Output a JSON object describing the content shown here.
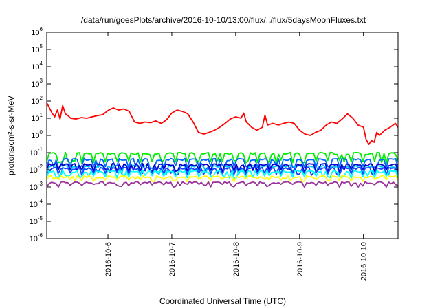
{
  "chart_data": {
    "type": "line",
    "title": "/data/run/goesPlots/archive/2016-10-10/13:00/flux/../flux/5daysMoonFluxes.txt",
    "xlabel": "Coordinated Universal Time (UTC)",
    "ylabel": "protons/cm²-s-sr-MeV",
    "yscale": "log",
    "ylim": [
      1e-06,
      1000000.0
    ],
    "xlim": [
      "2016-10-05T01:00",
      "2016-10-10T13:00"
    ],
    "x_ticks": [
      "2016-10-6",
      "2016-10-7",
      "2016-10-8",
      "2016-10-9",
      "2016-10-10"
    ],
    "y_ticks": [
      {
        "base": "10",
        "exp": "-6"
      },
      {
        "base": "10",
        "exp": "-5"
      },
      {
        "base": "10",
        "exp": "-4"
      },
      {
        "base": "10",
        "exp": "-3"
      },
      {
        "base": "10",
        "exp": "-2"
      },
      {
        "base": "10",
        "exp": "-1"
      },
      {
        "base": "10",
        "exp": "0"
      },
      {
        "base": "10",
        "exp": "1"
      },
      {
        "base": "10",
        "exp": "2"
      },
      {
        "base": "10",
        "exp": "3"
      },
      {
        "base": "10",
        "exp": "4"
      },
      {
        "base": "10",
        "exp": "5"
      },
      {
        "base": "10",
        "exp": "6"
      }
    ],
    "grid": false,
    "legend": "none",
    "series": [
      {
        "color": "#ff0000",
        "points": [
          [
            "2016-10-05T01:00",
            80
          ],
          [
            "2016-10-05T02:00",
            40
          ],
          [
            "2016-10-05T03:00",
            20
          ],
          [
            "2016-10-05T04:00",
            12
          ],
          [
            "2016-10-05T05:00",
            30
          ],
          [
            "2016-10-05T06:00",
            9
          ],
          [
            "2016-10-05T07:00",
            55
          ],
          [
            "2016-10-05T08:00",
            18
          ],
          [
            "2016-10-05T09:00",
            14
          ],
          [
            "2016-10-05T10:00",
            10
          ],
          [
            "2016-10-05T12:00",
            9
          ],
          [
            "2016-10-05T14:00",
            11
          ],
          [
            "2016-10-05T16:00",
            10
          ],
          [
            "2016-10-05T18:00",
            12
          ],
          [
            "2016-10-05T20:00",
            14
          ],
          [
            "2016-10-05T22:00",
            16
          ],
          [
            "2016-10-06T00:00",
            28
          ],
          [
            "2016-10-06T02:00",
            40
          ],
          [
            "2016-10-06T04:00",
            30
          ],
          [
            "2016-10-06T06:00",
            35
          ],
          [
            "2016-10-06T08:00",
            25
          ],
          [
            "2016-10-06T10:00",
            6
          ],
          [
            "2016-10-06T12:00",
            5
          ],
          [
            "2016-10-06T14:00",
            6
          ],
          [
            "2016-10-06T16:00",
            5.5
          ],
          [
            "2016-10-06T18:00",
            7
          ],
          [
            "2016-10-06T20:00",
            5
          ],
          [
            "2016-10-06T22:00",
            8
          ],
          [
            "2016-10-07T00:00",
            20
          ],
          [
            "2016-10-07T02:00",
            30
          ],
          [
            "2016-10-07T04:00",
            25
          ],
          [
            "2016-10-07T06:00",
            18
          ],
          [
            "2016-10-07T08:00",
            6
          ],
          [
            "2016-10-07T10:00",
            1.5
          ],
          [
            "2016-10-07T12:00",
            1.2
          ],
          [
            "2016-10-07T14:00",
            1.5
          ],
          [
            "2016-10-07T16:00",
            2
          ],
          [
            "2016-10-07T18:00",
            3
          ],
          [
            "2016-10-07T20:00",
            5
          ],
          [
            "2016-10-07T22:00",
            9
          ],
          [
            "2016-10-08T00:00",
            12
          ],
          [
            "2016-10-08T02:00",
            10
          ],
          [
            "2016-10-08T03:00",
            20
          ],
          [
            "2016-10-08T04:00",
            6
          ],
          [
            "2016-10-08T06:00",
            3
          ],
          [
            "2016-10-08T08:00",
            2
          ],
          [
            "2016-10-08T10:00",
            3
          ],
          [
            "2016-10-08T11:00",
            15
          ],
          [
            "2016-10-08T12:00",
            4
          ],
          [
            "2016-10-08T14:00",
            5
          ],
          [
            "2016-10-08T16:00",
            4
          ],
          [
            "2016-10-08T18:00",
            5
          ],
          [
            "2016-10-08T20:00",
            6
          ],
          [
            "2016-10-08T22:00",
            5
          ],
          [
            "2016-10-09T00:00",
            2
          ],
          [
            "2016-10-09T02:00",
            1.2
          ],
          [
            "2016-10-09T04:00",
            1
          ],
          [
            "2016-10-09T06:00",
            1.5
          ],
          [
            "2016-10-09T08:00",
            2
          ],
          [
            "2016-10-09T10:00",
            4
          ],
          [
            "2016-10-09T12:00",
            6
          ],
          [
            "2016-10-09T14:00",
            5
          ],
          [
            "2016-10-09T16:00",
            9
          ],
          [
            "2016-10-09T18:00",
            18
          ],
          [
            "2016-10-09T20:00",
            10
          ],
          [
            "2016-10-09T22:00",
            4
          ],
          [
            "2016-10-10T00:00",
            3
          ],
          [
            "2016-10-10T01:00",
            0.6
          ],
          [
            "2016-10-10T02:00",
            0.3
          ],
          [
            "2016-10-10T03:00",
            0.5
          ],
          [
            "2016-10-10T04:00",
            0.4
          ],
          [
            "2016-10-10T05:00",
            1.5
          ],
          [
            "2016-10-10T06:00",
            1
          ],
          [
            "2016-10-10T08:00",
            2
          ],
          [
            "2016-10-10T10:00",
            3
          ],
          [
            "2016-10-10T12:00",
            5
          ],
          [
            "2016-10-10T13:00",
            3
          ]
        ]
      },
      {
        "color": "#00ee00",
        "base": 0.09,
        "low": 0.03
      },
      {
        "color": "#0066ff",
        "base": 0.04,
        "low": 0.015
      },
      {
        "color": "#00c8ff",
        "base": 0.016,
        "low": 0.006
      },
      {
        "color": "#0000cc",
        "base": 0.02,
        "low": 0.009
      },
      {
        "color": "#1a40ff",
        "base": 0.012,
        "low": 0.006
      },
      {
        "color": "#00ffff",
        "base": 0.008,
        "low": 0.004
      },
      {
        "color": "#ffff00",
        "base": 0.004,
        "low": 0.0025
      },
      {
        "color": "#993399",
        "base": 0.0018,
        "low": 0.0012
      }
    ]
  }
}
